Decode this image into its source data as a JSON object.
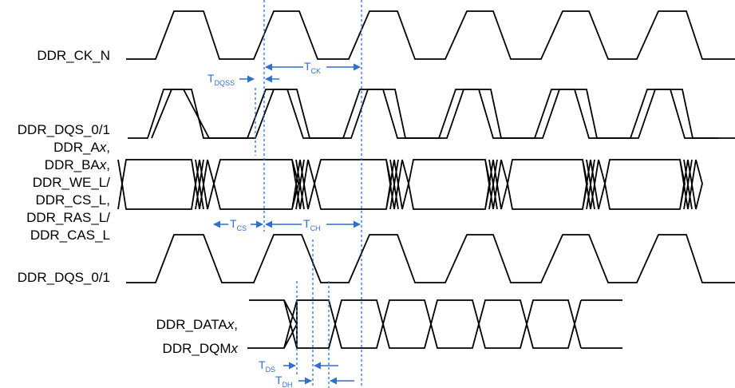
{
  "signals": {
    "ck_n": "DDR_CK_N",
    "dqs_top": "DDR_DQS_0/1",
    "addr": [
      "DDR_A",
      "DDR_BA",
      "DDR_WE_L/",
      "DDR_CS_L,",
      "DDR_RAS_L/",
      "DDR_CAS_L"
    ],
    "addr_suffix": "x",
    "addr_comma": ",",
    "dqs_bottom": "DDR_DQS_0/1",
    "data_1": "DDR_DATA",
    "data_2": "DDR_DQM",
    "data_suffix": "x",
    "data_comma": ","
  },
  "timing": {
    "t": "T",
    "ck": "CK",
    "dqss": "DQSS",
    "cs": "CS",
    "ch": "CH",
    "ds": "DS",
    "dh": "DH"
  },
  "colors": {
    "annotation": "#2f6fce",
    "waveform": "#000000"
  }
}
